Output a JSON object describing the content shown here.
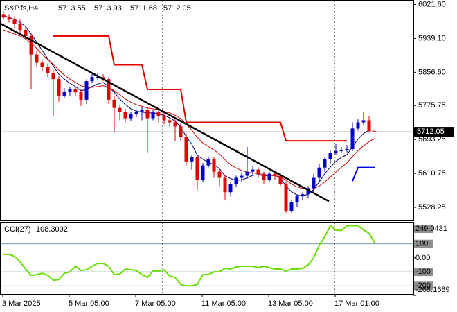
{
  "header": {
    "symbol": "S&P.fs,H4"
  },
  "chart_data": [
    {
      "type": "candlestick",
      "categories": [
        "3 Mar 2025",
        null,
        null,
        null,
        null,
        null,
        null,
        null,
        null,
        null,
        null,
        null,
        "5 Mar 05:00",
        null,
        null,
        null,
        null,
        null,
        null,
        null,
        null,
        null,
        null,
        null,
        "7 Mar 05:00",
        null,
        null,
        null,
        null,
        null,
        null,
        null,
        null,
        null,
        null,
        null,
        "11 Mar 05:00",
        null,
        null,
        null,
        null,
        null,
        null,
        null,
        null,
        null,
        null,
        null,
        "13 Mar 05:00",
        null,
        null,
        null,
        null,
        null,
        null,
        null,
        null,
        null,
        null,
        null,
        "17 Mar 01:00",
        null,
        null,
        null,
        null,
        null,
        null,
        null
      ],
      "open": [
        5998,
        5990,
        5985,
        5975,
        5960,
        5945,
        5900,
        5880,
        5870,
        5855,
        5840,
        5800,
        5810,
        5815,
        5808,
        5790,
        5835,
        5845,
        5845,
        5840,
        5790,
        5770,
        5760,
        5745,
        5755,
        5760,
        5765,
        5745,
        5760,
        5750,
        5740,
        5735,
        5725,
        5700,
        5640,
        5650,
        5595,
        5630,
        5645,
        5615,
        5600,
        5565,
        5585,
        5600,
        5605,
        5615,
        5620,
        5610,
        5595,
        5610,
        5605,
        5585,
        5520,
        5540,
        5555,
        5560,
        5575,
        5600,
        5625,
        5645,
        5660,
        5665,
        5668,
        5670,
        5720,
        5735,
        5740,
        5713.55
      ],
      "high": [
        6005,
        5998,
        5992,
        5985,
        5968,
        5950,
        5910,
        5888,
        5878,
        5862,
        5848,
        5818,
        5822,
        5822,
        5815,
        5840,
        5852,
        5855,
        5852,
        5845,
        5798,
        5778,
        5768,
        5760,
        5765,
        5772,
        5772,
        5765,
        5768,
        5758,
        5748,
        5742,
        5732,
        5708,
        5656,
        5655,
        5636,
        5652,
        5650,
        5622,
        5608,
        5590,
        5605,
        5612,
        5675,
        5628,
        5626,
        5615,
        5615,
        5618,
        5612,
        5590,
        5545,
        5560,
        5565,
        5580,
        5610,
        5635,
        5650,
        5668,
        5682,
        5675,
        5680,
        5735,
        5742,
        5760,
        5750,
        5713.93
      ],
      "low": [
        5985,
        5978,
        5965,
        5950,
        5935,
        5815,
        5870,
        5860,
        5845,
        5750,
        5785,
        5795,
        5800,
        5800,
        5775,
        5780,
        5830,
        5838,
        5835,
        5780,
        5710,
        5740,
        5735,
        5738,
        5748,
        5740,
        5660,
        5740,
        5735,
        5730,
        5725,
        5690,
        5690,
        5630,
        5620,
        5570,
        5590,
        5625,
        5600,
        5580,
        5545,
        5555,
        5578,
        5590,
        5598,
        5605,
        5600,
        5585,
        5590,
        5595,
        5580,
        5515,
        5515,
        5530,
        5545,
        5550,
        5565,
        5590,
        5615,
        5635,
        5655,
        5660,
        5662,
        5665,
        5715,
        5728,
        5710,
        5711.68
      ],
      "close": [
        5990,
        5985,
        5975,
        5960,
        5945,
        5900,
        5880,
        5870,
        5855,
        5840,
        5800,
        5810,
        5815,
        5808,
        5790,
        5835,
        5845,
        5845,
        5840,
        5790,
        5770,
        5760,
        5745,
        5755,
        5760,
        5765,
        5745,
        5760,
        5750,
        5740,
        5735,
        5725,
        5700,
        5640,
        5650,
        5595,
        5630,
        5645,
        5615,
        5600,
        5565,
        5585,
        5600,
        5605,
        5615,
        5620,
        5610,
        5595,
        5610,
        5605,
        5585,
        5520,
        5540,
        5555,
        5560,
        5575,
        5600,
        5625,
        5645,
        5660,
        5665,
        5668,
        5670,
        5720,
        5735,
        5740,
        5713.55,
        5712.05
      ],
      "up_color": "#0000c8",
      "down_color": "#e00000",
      "overlays": [
        {
          "color": "#00007a",
          "values": [
            5995,
            5990,
            5985,
            5978,
            5968,
            5950,
            5930,
            5910,
            5890,
            5872,
            5852,
            5840,
            5830,
            5822,
            5812,
            5815,
            5822,
            5828,
            5832,
            5822,
            5808,
            5792,
            5778,
            5768,
            5762,
            5760,
            5758,
            5758,
            5756,
            5752,
            5746,
            5738,
            5724,
            5700,
            5682,
            5655,
            5645,
            5638,
            5632,
            5622,
            5605,
            5598,
            5594,
            5595,
            5600,
            5606,
            5608,
            5605,
            5606,
            5606,
            5600,
            5580,
            5566,
            5558,
            5556,
            5560,
            5572,
            5590,
            5610,
            5626,
            5640,
            5650,
            5656,
            5676,
            5694,
            5708,
            5716,
            5716
          ]
        },
        {
          "color": "#d40000",
          "values": [
            5960,
            5955,
            5950,
            5945,
            5938,
            5928,
            5915,
            5900,
            5888,
            5876,
            5862,
            5850,
            5840,
            5832,
            5824,
            5820,
            5820,
            5822,
            5824,
            5820,
            5812,
            5802,
            5792,
            5784,
            5778,
            5774,
            5770,
            5768,
            5765,
            5762,
            5758,
            5752,
            5744,
            5730,
            5716,
            5698,
            5685,
            5676,
            5668,
            5658,
            5644,
            5632,
            5624,
            5618,
            5614,
            5612,
            5610,
            5608,
            5606,
            5605,
            5603,
            5594,
            5585,
            5578,
            5574,
            5572,
            5574,
            5580,
            5590,
            5602,
            5614,
            5626,
            5636,
            5652,
            5666,
            5678,
            5688,
            5696
          ]
        },
        {
          "color": "#e00000",
          "width": 2,
          "values": [
            null,
            null,
            null,
            null,
            null,
            null,
            null,
            null,
            null,
            5945,
            5945,
            5945,
            5945,
            5945,
            5945,
            5945,
            5945,
            5945,
            5945,
            5945,
            5875,
            5875,
            5875,
            5875,
            5875,
            5875,
            5815,
            5815,
            5815,
            5815,
            5815,
            5815,
            5815,
            5735,
            5735,
            5735,
            5735,
            5735,
            5735,
            5735,
            5735,
            5735,
            5735,
            5735,
            5735,
            5735,
            5735,
            5735,
            5735,
            5735,
            5735,
            5690,
            5690,
            5690,
            5690,
            5690,
            5690,
            5690,
            5690,
            5690,
            5690,
            5690,
            5690,
            null,
            null,
            null,
            null,
            null
          ]
        },
        {
          "color": "#0000e0",
          "width": 2,
          "values": [
            null,
            null,
            null,
            null,
            null,
            null,
            null,
            null,
            null,
            null,
            null,
            null,
            null,
            null,
            null,
            null,
            null,
            null,
            null,
            null,
            null,
            null,
            null,
            null,
            null,
            null,
            null,
            null,
            null,
            null,
            null,
            null,
            null,
            null,
            null,
            null,
            null,
            null,
            null,
            null,
            null,
            null,
            null,
            null,
            null,
            null,
            null,
            null,
            null,
            null,
            null,
            null,
            null,
            null,
            null,
            null,
            null,
            null,
            null,
            null,
            null,
            null,
            null,
            5592,
            5625,
            5625,
            5625,
            5625
          ]
        }
      ],
      "trendline": {
        "color": "#000000",
        "x": [
          0,
          58
        ],
        "values": [
          5976,
          5543
        ]
      },
      "ylim": [
        5496.3,
        6030.9
      ],
      "yticks": [
        {
          "value": 6021.6,
          "label": "6021.60"
        },
        {
          "value": 5939.1,
          "label": "5939.10"
        },
        {
          "value": 5856.6,
          "label": "5856.60"
        },
        5775.75,
        5693.25,
        5610.75,
        5528.25
      ]
    },
    {
      "type": "line",
      "title": "CCI(27)",
      "color": "#66e000",
      "values": [
        25,
        25,
        10,
        -30,
        -80,
        -125,
        -120,
        -110,
        -125,
        -160,
        -155,
        -110,
        -100,
        -60,
        -90,
        -85,
        -60,
        -40,
        -40,
        -60,
        -120,
        -115,
        -80,
        -85,
        -90,
        -120,
        -140,
        -90,
        -95,
        -85,
        -130,
        -140,
        -190,
        -200,
        -200,
        -190,
        -120,
        -120,
        -100,
        -100,
        -75,
        -80,
        -65,
        -60,
        -60,
        -60,
        -70,
        -60,
        -70,
        -80,
        -80,
        -95,
        -80,
        -80,
        -75,
        -50,
        0,
        90,
        150,
        230,
        200,
        195,
        230,
        230,
        230,
        200,
        175,
        108.3092
      ],
      "levels": [
        249.0431,
        100,
        -100,
        -200
      ],
      "ylim": [
        -258,
        252
      ],
      "yticks": [
        249.0431,
        100,
        {
          "value": 0,
          "label": "0.00"
        },
        -100,
        -200,
        -268.1689
      ]
    }
  ]
}
